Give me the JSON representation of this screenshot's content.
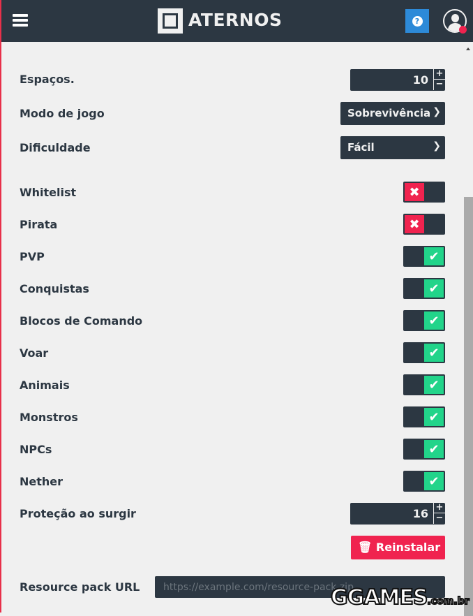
{
  "header": {
    "brand": "ATERNOS",
    "help_icon": "?"
  },
  "settings": {
    "slots": {
      "label": "Espaços.",
      "value": "10"
    },
    "gamemode": {
      "label": "Modo de jogo",
      "value": "Sobrevivência"
    },
    "difficulty": {
      "label": "Dificuldade",
      "value": "Fácil"
    },
    "toggles": [
      {
        "label": "Whitelist",
        "on": false
      },
      {
        "label": "Pirata",
        "on": false
      },
      {
        "label": "PVP",
        "on": true
      },
      {
        "label": "Conquistas",
        "on": true
      },
      {
        "label": "Blocos de Comando",
        "on": true
      },
      {
        "label": "Voar",
        "on": true
      },
      {
        "label": "Animais",
        "on": true
      },
      {
        "label": "Monstros",
        "on": true
      },
      {
        "label": "NPCs",
        "on": true
      },
      {
        "label": "Nether",
        "on": true
      }
    ],
    "spawn_protection": {
      "label": "Proteção ao surgir",
      "value": "16"
    },
    "reinstall_label": "Reinstalar",
    "resource_pack": {
      "label": "Resource pack URL",
      "placeholder": "https://example.com/resource-pack.zip"
    }
  },
  "watermark": {
    "text": "GGAMES",
    "suffix": ".com.br"
  },
  "colors": {
    "header": "#2c3742",
    "on": "#22d48a",
    "off": "#f0234f",
    "help": "#2d8ad8"
  }
}
